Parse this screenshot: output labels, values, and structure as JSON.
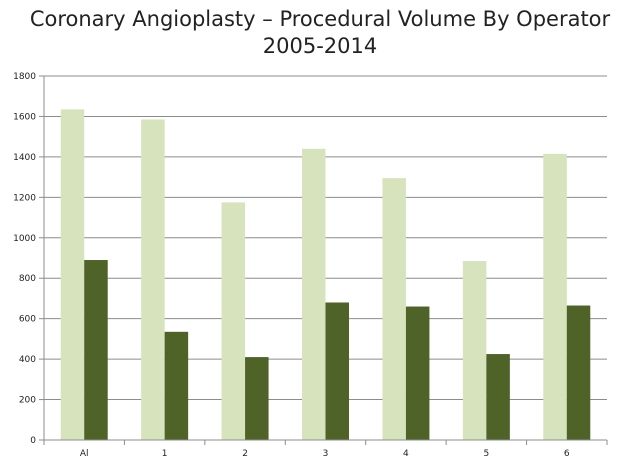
{
  "chart_data": {
    "type": "bar",
    "title_lines": [
      "Coronary Angioplasty – Procedural Volume By Operator",
      "2005-2014"
    ],
    "xlabel": "",
    "ylabel": "",
    "categories": [
      "Al",
      "1",
      "2",
      "3",
      "4",
      "5",
      "6"
    ],
    "series": [
      {
        "color": "#d6e3bd",
        "values": [
          1635,
          1585,
          1175,
          1440,
          1295,
          885,
          1415
        ]
      },
      {
        "color": "#4f6228",
        "values": [
          890,
          535,
          410,
          680,
          660,
          425,
          665
        ]
      }
    ],
    "ylim": [
      0,
      1800
    ],
    "yticks": [
      0,
      200,
      400,
      600,
      800,
      1000,
      1200,
      1400,
      1600,
      1800
    ],
    "grid": true,
    "legend": "none"
  }
}
